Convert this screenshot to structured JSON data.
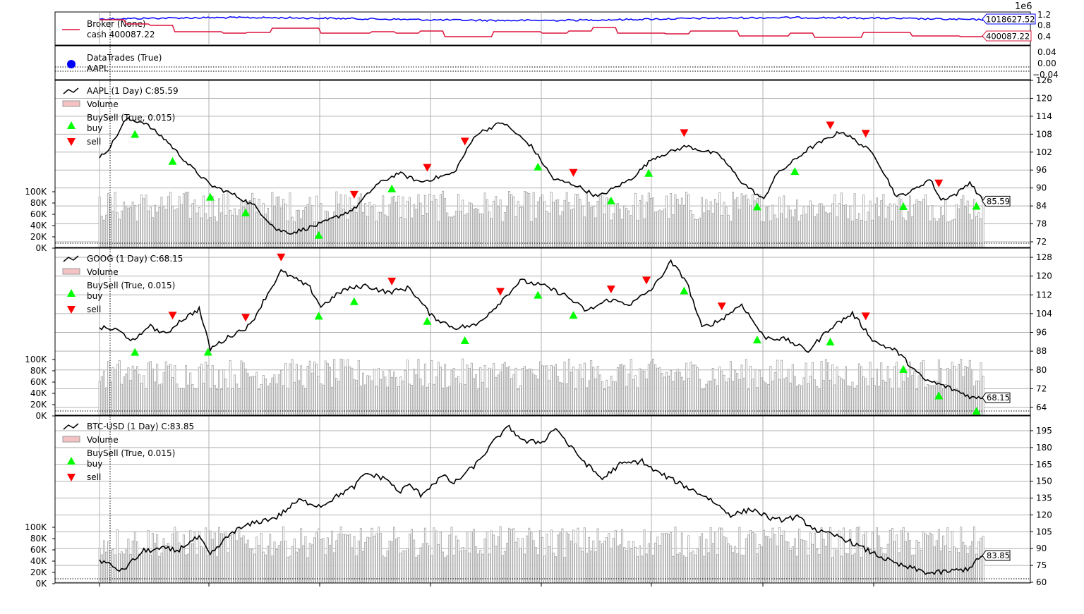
{
  "chart_data": {
    "type": "line",
    "exponent_label": "1e6",
    "broker": {
      "legend": [
        "Broker (None)",
        "cash 400087.22"
      ],
      "value_tag": "1018627.52",
      "cash_tag": "400087.22",
      "yticks": [
        "1.2",
        "0.8",
        "0.4"
      ],
      "value_color": "#0000ff",
      "cash_color": "#dc143c"
    },
    "trades": {
      "legend": [
        "DataTrades (True)",
        "AAPL"
      ],
      "yticks": [
        "0.04",
        "0.00",
        "−0.04"
      ]
    },
    "volume_ticks": [
      "100K",
      "80K",
      "60K",
      "40K",
      "20K",
      "0K"
    ],
    "panels": [
      {
        "legend": [
          "AAPL (1 Day) C:85.59",
          "Volume",
          "BuySell (True, 0.015)",
          "buy",
          "sell"
        ],
        "close_tag": "85.59",
        "yticks": [
          "126",
          "120",
          "114",
          "108",
          "102",
          "96",
          "90",
          "84",
          "78",
          "72"
        ],
        "ylim": [
          72,
          126
        ],
        "price_keypoints": [
          [
            0,
            100
          ],
          [
            5,
            104
          ],
          [
            12,
            113
          ],
          [
            20,
            112
          ],
          [
            30,
            106
          ],
          [
            40,
            98
          ],
          [
            50,
            91
          ],
          [
            60,
            88
          ],
          [
            70,
            84
          ],
          [
            80,
            76
          ],
          [
            87,
            75
          ],
          [
            100,
            78
          ],
          [
            115,
            83
          ],
          [
            125,
            91
          ],
          [
            135,
            95
          ],
          [
            145,
            92
          ],
          [
            160,
            95
          ],
          [
            170,
            108
          ],
          [
            182,
            112
          ],
          [
            195,
            104
          ],
          [
            205,
            93
          ],
          [
            215,
            91
          ],
          [
            225,
            87
          ],
          [
            240,
            93
          ],
          [
            250,
            100
          ],
          [
            265,
            104
          ],
          [
            280,
            101
          ],
          [
            290,
            92
          ],
          [
            300,
            86
          ],
          [
            305,
            94
          ],
          [
            320,
            103
          ],
          [
            335,
            109
          ],
          [
            345,
            104
          ],
          [
            350,
            101
          ],
          [
            360,
            87
          ],
          [
            367,
            89
          ],
          [
            375,
            93
          ],
          [
            380,
            86
          ],
          [
            387,
            88
          ],
          [
            393,
            92
          ],
          [
            399,
            85.59
          ]
        ],
        "buy_idx": [
          16,
          33,
          50,
          66,
          99,
          132,
          198,
          231,
          248,
          297,
          314,
          363,
          396
        ],
        "sell_idx": [
          115,
          148,
          165,
          214,
          264,
          330,
          346,
          379
        ]
      },
      {
        "legend": [
          "GOOG (1 Day) C:68.15",
          "Volume",
          "BuySell (True, 0.015)",
          "buy",
          "sell"
        ],
        "close_tag": "68.15",
        "yticks": [
          "128",
          "120",
          "112",
          "104",
          "96",
          "88",
          "80",
          "72",
          "64"
        ],
        "ylim": [
          64,
          128
        ],
        "price_keypoints": [
          [
            0,
            98
          ],
          [
            8,
            97
          ],
          [
            16,
            92
          ],
          [
            22,
            99
          ],
          [
            30,
            95
          ],
          [
            35,
            100
          ],
          [
            45,
            106
          ],
          [
            50,
            89
          ],
          [
            60,
            95
          ],
          [
            68,
            99
          ],
          [
            75,
            111
          ],
          [
            82,
            122
          ],
          [
            88,
            119
          ],
          [
            95,
            115
          ],
          [
            100,
            107
          ],
          [
            110,
            114
          ],
          [
            120,
            116
          ],
          [
            130,
            113
          ],
          [
            140,
            115
          ],
          [
            150,
            103
          ],
          [
            160,
            98
          ],
          [
            170,
            99
          ],
          [
            180,
            108
          ],
          [
            190,
            118
          ],
          [
            200,
            116
          ],
          [
            210,
            112
          ],
          [
            220,
            105
          ],
          [
            230,
            110
          ],
          [
            240,
            108
          ],
          [
            250,
            115
          ],
          [
            258,
            126
          ],
          [
            265,
            118
          ],
          [
            272,
            98
          ],
          [
            280,
            101
          ],
          [
            290,
            108
          ],
          [
            300,
            94
          ],
          [
            310,
            93
          ],
          [
            320,
            88
          ],
          [
            330,
            98
          ],
          [
            340,
            104
          ],
          [
            350,
            92
          ],
          [
            360,
            88
          ],
          [
            372,
            76
          ],
          [
            382,
            73
          ],
          [
            395,
            68
          ],
          [
            399,
            68.15
          ]
        ],
        "buy_idx": [
          16,
          49,
          99,
          115,
          148,
          165,
          198,
          214,
          264,
          297,
          330,
          363,
          379,
          396
        ],
        "sell_idx": [
          33,
          66,
          82,
          132,
          181,
          231,
          247,
          281,
          346
        ]
      },
      {
        "legend": [
          "BTC-USD (1 Day) C:83.85",
          "Volume",
          "BuySell (True, 0.015)",
          "buy",
          "sell"
        ],
        "close_tag": "83.85",
        "yticks": [
          "195",
          "180",
          "165",
          "150",
          "135",
          "120",
          "105",
          "90",
          "75",
          "60"
        ],
        "ylim": [
          60,
          195
        ],
        "price_keypoints": [
          [
            0,
            80
          ],
          [
            10,
            70
          ],
          [
            20,
            88
          ],
          [
            30,
            90
          ],
          [
            35,
            88
          ],
          [
            40,
            95
          ],
          [
            45,
            100
          ],
          [
            50,
            84
          ],
          [
            60,
            105
          ],
          [
            70,
            113
          ],
          [
            80,
            118
          ],
          [
            90,
            133
          ],
          [
            100,
            128
          ],
          [
            110,
            140
          ],
          [
            115,
            145
          ],
          [
            120,
            157
          ],
          [
            130,
            152
          ],
          [
            135,
            140
          ],
          [
            140,
            147
          ],
          [
            145,
            138
          ],
          [
            155,
            155
          ],
          [
            160,
            148
          ],
          [
            170,
            165
          ],
          [
            180,
            190
          ],
          [
            185,
            198
          ],
          [
            192,
            185
          ],
          [
            200,
            185
          ],
          [
            206,
            198
          ],
          [
            212,
            182
          ],
          [
            220,
            165
          ],
          [
            227,
            152
          ],
          [
            235,
            165
          ],
          [
            245,
            168
          ],
          [
            250,
            160
          ],
          [
            260,
            150
          ],
          [
            270,
            140
          ],
          [
            275,
            135
          ],
          [
            285,
            120
          ],
          [
            295,
            125
          ],
          [
            305,
            115
          ],
          [
            315,
            118
          ],
          [
            325,
            105
          ],
          [
            335,
            100
          ],
          [
            345,
            90
          ],
          [
            360,
            76
          ],
          [
            375,
            68
          ],
          [
            385,
            70
          ],
          [
            392,
            72
          ],
          [
            399,
            83.85
          ]
        ],
        "buy_idx": [],
        "sell_idx": []
      }
    ]
  }
}
